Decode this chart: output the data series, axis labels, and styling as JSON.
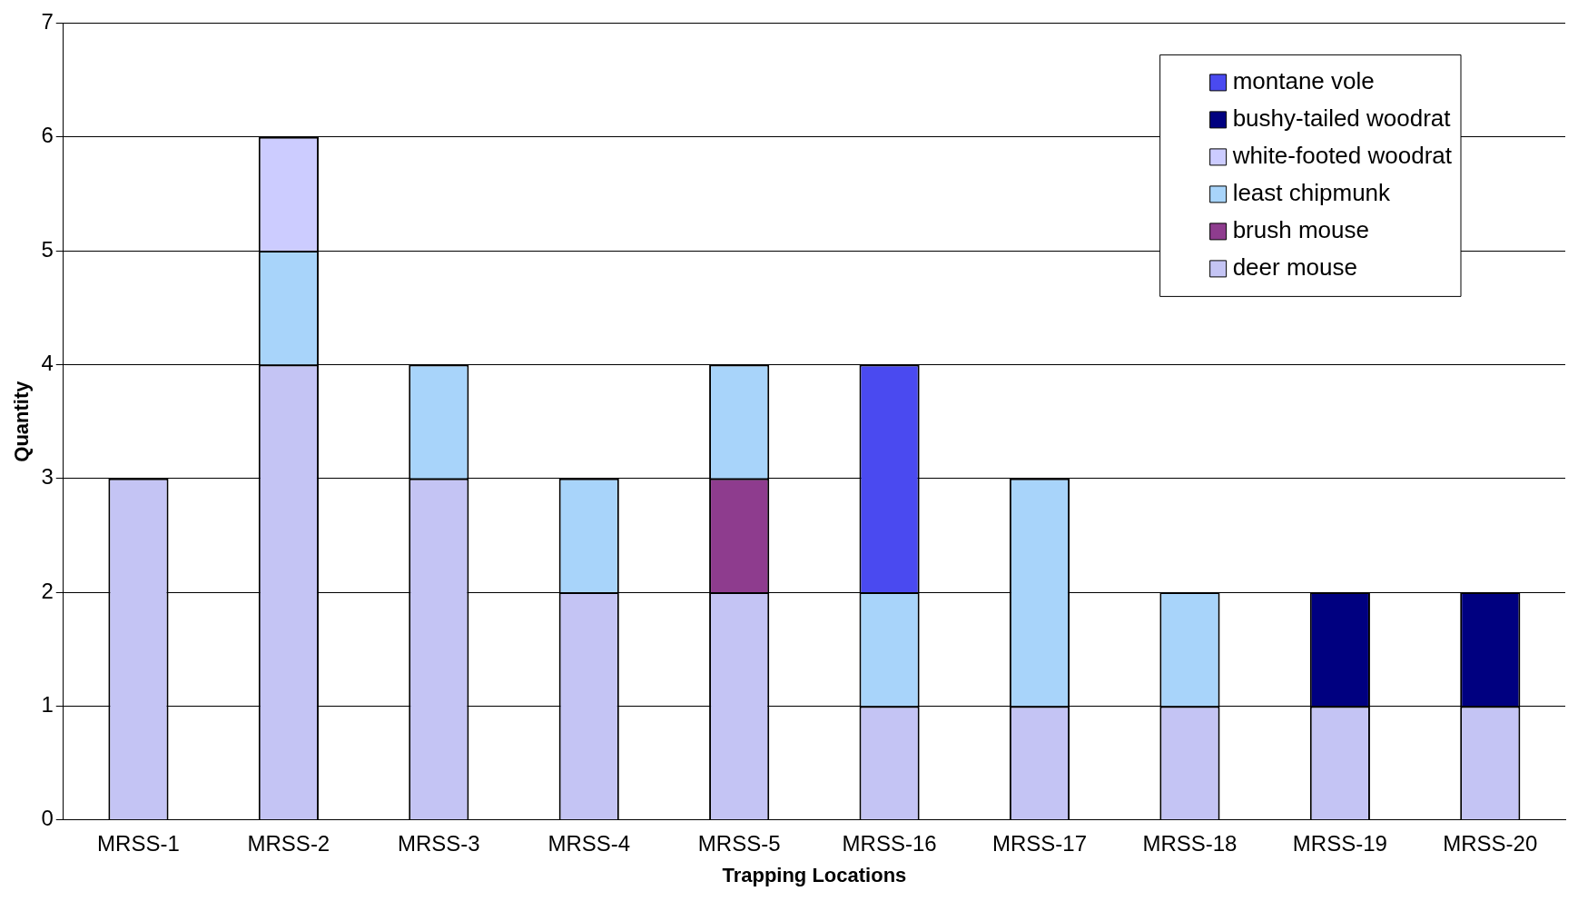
{
  "chart_data": {
    "type": "bar",
    "stacked": true,
    "xlabel": "Trapping Locations",
    "ylabel": "Quantity",
    "categories": [
      "MRSS-1",
      "MRSS-2",
      "MRSS-3",
      "MRSS-4",
      "MRSS-5",
      "MRSS-16",
      "MRSS-17",
      "MRSS-18",
      "MRSS-19",
      "MRSS-20"
    ],
    "series": [
      {
        "name": "deer mouse",
        "color": "#c4c4f4",
        "values": [
          3,
          4,
          3,
          2,
          2,
          1,
          1,
          1,
          1,
          1
        ]
      },
      {
        "name": "brush mouse",
        "color": "#8e3c8e",
        "values": [
          null,
          null,
          null,
          null,
          1,
          null,
          null,
          null,
          null,
          null
        ]
      },
      {
        "name": "least chipmunk",
        "color": "#a8d4fa",
        "values": [
          null,
          1,
          1,
          1,
          1,
          1,
          2,
          1,
          null,
          null
        ]
      },
      {
        "name": "white-footed woodrat",
        "color": "#ccccff",
        "values": [
          null,
          1,
          null,
          null,
          null,
          null,
          null,
          null,
          null,
          null
        ]
      },
      {
        "name": "bushy-tailed woodrat",
        "color": "#000080",
        "values": [
          null,
          null,
          null,
          null,
          null,
          null,
          null,
          null,
          1,
          1
        ]
      },
      {
        "name": "montane vole",
        "color": "#4a4af0",
        "values": [
          null,
          null,
          null,
          null,
          null,
          2,
          null,
          null,
          null,
          null
        ]
      }
    ],
    "ylim": [
      0,
      7
    ],
    "yticks": [
      0,
      1,
      2,
      3,
      4,
      5,
      6,
      7
    ],
    "grid": "y",
    "legend": "top right"
  }
}
